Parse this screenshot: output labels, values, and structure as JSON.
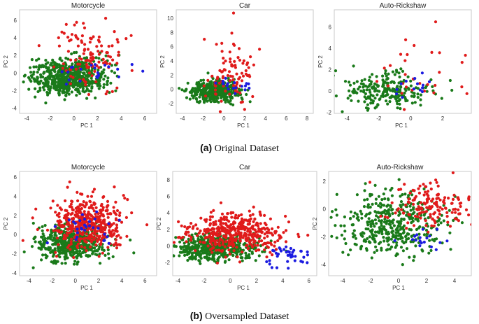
{
  "colors": {
    "class_green": "#1a7a1a",
    "class_red": "#e01b1b",
    "class_blue": "#1b1be0",
    "frame": "#c8c8c8"
  },
  "captions": [
    {
      "tag": "(a)",
      "text": "Original Dataset"
    },
    {
      "tag": "(b)",
      "text": "Oversampled Dataset"
    }
  ],
  "chart_data": [
    {
      "type": "scatter",
      "title": "Motorcycle",
      "xlabel": "PC 1",
      "ylabel": "PC 2",
      "xlim": [
        -4.6,
        7.0
      ],
      "ylim": [
        -4.6,
        7.2
      ],
      "xticks": [
        -4,
        -2,
        0,
        2,
        4,
        6
      ],
      "yticks": [
        -4,
        -2,
        0,
        2,
        4,
        6
      ],
      "series": [
        {
          "name": "green",
          "count": 600,
          "center": [
            -0.5,
            -0.4
          ],
          "spread": [
            1.6,
            1.0
          ]
        },
        {
          "name": "red",
          "count": 120,
          "center": [
            1.2,
            1.8
          ],
          "spread": [
            1.5,
            1.8
          ]
        },
        {
          "name": "blue",
          "count": 22,
          "center": [
            1.5,
            0.2
          ],
          "spread": [
            1.6,
            0.8
          ]
        }
      ]
    },
    {
      "type": "scatter",
      "title": "Car",
      "xlabel": "PC 1",
      "ylabel": "PC 2",
      "xlim": [
        -4.6,
        8.6
      ],
      "ylim": [
        -3.4,
        11.2
      ],
      "xticks": [
        -4,
        -2,
        0,
        2,
        4,
        6,
        8
      ],
      "yticks": [
        -2,
        0,
        2,
        4,
        6,
        8,
        10
      ],
      "series": [
        {
          "name": "green",
          "count": 420,
          "center": [
            -1.0,
            -0.3
          ],
          "spread": [
            1.2,
            0.7
          ]
        },
        {
          "name": "red",
          "count": 90,
          "center": [
            0.8,
            2.0
          ],
          "spread": [
            1.3,
            2.5
          ]
        },
        {
          "name": "blue",
          "count": 18,
          "center": [
            0.8,
            0.6
          ],
          "spread": [
            1.0,
            0.6
          ]
        }
      ]
    },
    {
      "type": "scatter",
      "title": "Auto-Rickshaw",
      "xlabel": "PC 1",
      "ylabel": "PC 2",
      "xlim": [
        -4.8,
        3.8
      ],
      "ylim": [
        -2.1,
        7.6
      ],
      "xticks": [
        -4,
        -2,
        0,
        2
      ],
      "yticks": [
        -2,
        0,
        2,
        4,
        6
      ],
      "series": [
        {
          "name": "green",
          "count": 220,
          "center": [
            -1.5,
            0.1
          ],
          "spread": [
            1.3,
            0.8
          ]
        },
        {
          "name": "red",
          "count": 30,
          "center": [
            0.5,
            2.0
          ],
          "spread": [
            1.5,
            2.2
          ]
        },
        {
          "name": "blue",
          "count": 14,
          "center": [
            0.2,
            0.4
          ],
          "spread": [
            0.8,
            0.5
          ]
        }
      ]
    },
    {
      "type": "scatter",
      "title": "Motorcycle",
      "xlabel": "PC 1",
      "ylabel": "PC 2",
      "xlim": [
        -4.8,
        7.0
      ],
      "ylim": [
        -4.3,
        6.6
      ],
      "xticks": [
        -4,
        -2,
        0,
        2,
        4,
        6
      ],
      "yticks": [
        -4,
        -2,
        0,
        2,
        4,
        6
      ],
      "series": [
        {
          "name": "green",
          "count": 520,
          "center": [
            -0.3,
            -0.9
          ],
          "spread": [
            1.5,
            0.9
          ]
        },
        {
          "name": "red",
          "count": 450,
          "center": [
            1.0,
            1.2
          ],
          "spread": [
            1.6,
            1.4
          ]
        },
        {
          "name": "blue",
          "count": 30,
          "center": [
            1.5,
            0.5
          ],
          "spread": [
            1.3,
            0.8
          ]
        }
      ]
    },
    {
      "type": "scatter",
      "title": "Car",
      "xlabel": "PC 1",
      "ylabel": "PC 2",
      "xlim": [
        -4.4,
        6.6
      ],
      "ylim": [
        -3.6,
        9.0
      ],
      "xticks": [
        -4,
        -2,
        0,
        2,
        4,
        6
      ],
      "yticks": [
        -2,
        0,
        2,
        4,
        6,
        8
      ],
      "series": [
        {
          "name": "green",
          "count": 480,
          "center": [
            -1.2,
            -0.2
          ],
          "spread": [
            1.4,
            0.8
          ]
        },
        {
          "name": "red",
          "count": 420,
          "center": [
            0.3,
            1.5
          ],
          "spread": [
            1.8,
            1.2
          ]
        },
        {
          "name": "blue",
          "count": 40,
          "center": [
            4.2,
            -1.2
          ],
          "spread": [
            1.0,
            0.7
          ]
        }
      ]
    },
    {
      "type": "scatter",
      "title": "Auto-Rickshaw",
      "xlabel": "PC 1",
      "ylabel": "PC 2",
      "xlim": [
        -5.0,
        5.2
      ],
      "ylim": [
        -4.8,
        2.7
      ],
      "xticks": [
        -4,
        -2,
        0,
        2,
        4
      ],
      "yticks": [
        -4,
        -2,
        0,
        2
      ],
      "series": [
        {
          "name": "green",
          "count": 420,
          "center": [
            -0.5,
            -1.1
          ],
          "spread": [
            1.9,
            1.1
          ]
        },
        {
          "name": "red",
          "count": 150,
          "center": [
            2.3,
            0.3
          ],
          "spread": [
            1.4,
            0.9
          ]
        },
        {
          "name": "blue",
          "count": 18,
          "center": [
            1.8,
            -2.2
          ],
          "spread": [
            1.0,
            0.5
          ]
        }
      ]
    }
  ]
}
